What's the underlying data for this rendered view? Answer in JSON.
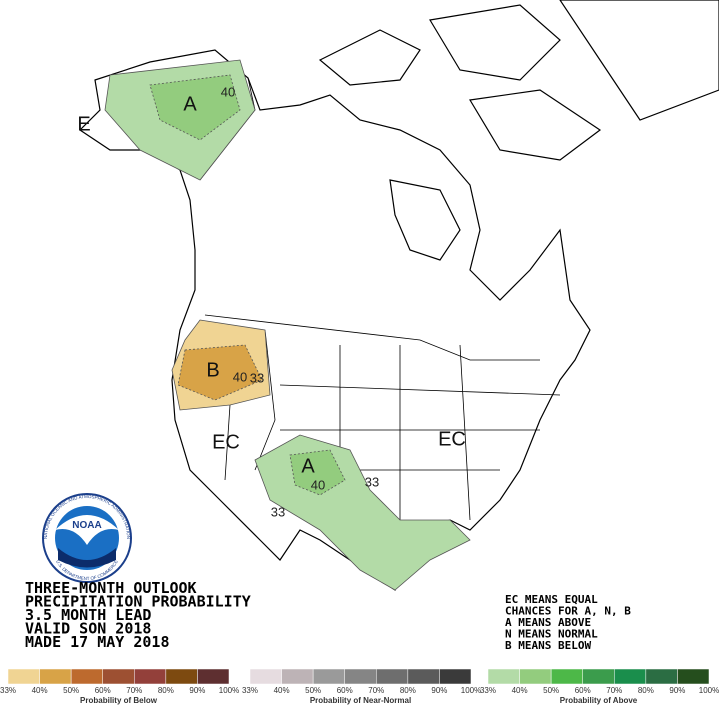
{
  "map": {
    "region_labels": {
      "alaska": "A",
      "alaska_edge": "E",
      "northwest": "B",
      "west": "EC",
      "east": "EC",
      "southwest": "A"
    },
    "contour_labels": {
      "alaska_40": "40",
      "northwest_40": "40",
      "northwest_33": "33",
      "southwest_40": "40",
      "southwest_33_east": "33",
      "southwest_33_west": "33"
    }
  },
  "logo": {
    "name": "NOAA",
    "ring_top": "NATIONAL OCEANIC AND ATMOSPHERIC ADMINISTRATION",
    "ring_bottom": "U.S. DEPARTMENT OF COMMERCE"
  },
  "title_block": [
    "THREE-MONTH OUTLOOK",
    "PRECIPITATION PROBABILITY",
    "3.5 MONTH LEAD",
    "VALID SON 2018",
    "MADE 17 MAY 2018"
  ],
  "key": [
    "EC MEANS EQUAL",
    "CHANCES FOR A, N, B",
    "A MEANS ABOVE",
    "N MEANS NORMAL",
    "B MEANS BELOW"
  ],
  "legends": [
    {
      "title": "Probability of Below",
      "colors": [
        "#f0d493",
        "#d8a347",
        "#bd6a2e",
        "#9d5032",
        "#93403a",
        "#7d4a10",
        "#5e2f30"
      ],
      "labels": [
        "33%",
        "40%",
        "50%",
        "60%",
        "70%",
        "80%",
        "90%",
        "100%"
      ]
    },
    {
      "title": "Probability of Near-Normal",
      "colors": [
        "#e6dce0",
        "#bdb3b6",
        "#9a9a9a",
        "#858585",
        "#6e6e6e",
        "#5b5b5b",
        "#3a3a3a"
      ],
      "labels": [
        "33%",
        "40%",
        "50%",
        "60%",
        "70%",
        "80%",
        "90%",
        "100%"
      ]
    },
    {
      "title": "Probability of Above",
      "colors": [
        "#b3dba7",
        "#93cc7e",
        "#4db848",
        "#3b9c4c",
        "#1a8e4c",
        "#2b6d43",
        "#254e1d"
      ],
      "labels": [
        "33%",
        "40%",
        "50%",
        "60%",
        "70%",
        "80%",
        "90%",
        "100%"
      ]
    }
  ]
}
